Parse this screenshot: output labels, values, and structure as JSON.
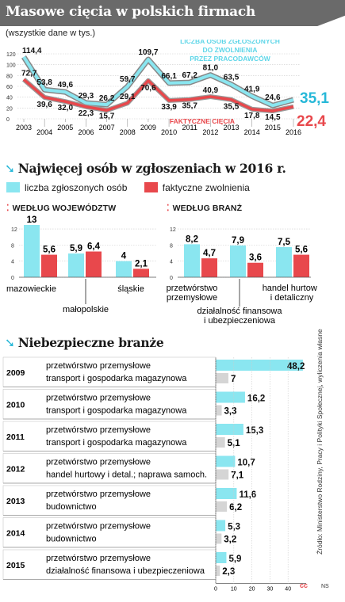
{
  "header": {
    "title": "Masowe cięcia w polskich firmach",
    "subtitle": "(wszystkie dane w tys.)"
  },
  "colors": {
    "cyan": "#8ae6f0",
    "cyan_dark": "#27b8d8",
    "red": "#e8484c",
    "gray": "#8a8a8a"
  },
  "chart_data": [
    {
      "type": "line",
      "x": [
        "2003",
        "2004",
        "2005",
        "2006",
        "2007",
        "2008",
        "2009",
        "2010",
        "2011",
        "2012",
        "2013",
        "2014",
        "2015",
        "2016"
      ],
      "ylim": [
        0,
        120
      ],
      "yticks": [
        0,
        20,
        40,
        60,
        80,
        100,
        120
      ],
      "series": [
        {
          "name": "LICZBA OSÓB ZGŁOSZONYCH DO ZWOLNIENIA PRZEZ PRACODAWCÓW",
          "values": [
            114.4,
            53.8,
            49.6,
            29.3,
            26.2,
            59.7,
            109.7,
            66.1,
            67.2,
            81.0,
            63.5,
            41.9,
            24.6,
            35.1
          ]
        },
        {
          "name": "FAKTYCZNE CIĘCIA",
          "values": [
            72.7,
            39.6,
            32.0,
            22.3,
            15.7,
            29.1,
            70.6,
            33.9,
            35.7,
            40.9,
            35.5,
            17.8,
            14.5,
            22.4
          ]
        }
      ],
      "value_labels_1": [
        "114,4",
        "53,8",
        "49,6",
        "29,3",
        "26,2",
        "59,7",
        "109,7",
        "66,1",
        "67,2",
        "81,0",
        "63,5",
        "41,9",
        "24,6",
        "35,1"
      ],
      "value_labels_2": [
        "72,7",
        "39,6",
        "32,0",
        "22,3",
        "15,7",
        "29,1",
        "70,6",
        "33,9",
        "35,7",
        "40,9",
        "35,5",
        "17,8",
        "14,5",
        "22,4"
      ]
    },
    {
      "type": "bar",
      "title": "WEDŁUG WOJEWÓDZTW",
      "categories": [
        "mazowieckie",
        "małopolskie",
        "śląskie"
      ],
      "ylim": [
        0,
        13
      ],
      "yticks": [
        0,
        4,
        8,
        12
      ],
      "series": [
        {
          "name": "liczba zgłoszonych osób",
          "values": [
            13,
            5.9,
            4
          ],
          "labels": [
            "13",
            "5,9",
            "4"
          ]
        },
        {
          "name": "faktyczne zwolnienia",
          "values": [
            5.6,
            6.4,
            2.1
          ],
          "labels": [
            "5,6",
            "6,4",
            "2,1"
          ]
        }
      ]
    },
    {
      "type": "bar",
      "title": "WEDŁUG BRANŻ",
      "categories": [
        "przetwórstwo przemysłowe",
        "działalność finansowa i ubezpieczeniowa",
        "handel hurtowy i detaliczny"
      ],
      "ylim": [
        0,
        13
      ],
      "yticks": [
        0,
        4,
        8,
        12
      ],
      "series": [
        {
          "name": "liczba zgłoszonych osób",
          "values": [
            8.2,
            7.9,
            7.5
          ],
          "labels": [
            "8,2",
            "7,9",
            "7,5"
          ]
        },
        {
          "name": "faktyczne zwolnienia",
          "values": [
            4.7,
            3.6,
            5.6
          ],
          "labels": [
            "4,7",
            "3,6",
            "5,6"
          ]
        }
      ]
    },
    {
      "type": "bar",
      "orientation": "horizontal",
      "title": "Niebezpieczne branże",
      "xlim": [
        0,
        50
      ],
      "xticks": [
        0,
        10,
        20,
        30,
        40
      ],
      "rows": [
        {
          "year": "2009",
          "sector1": "przetwórstwo przemysłowe",
          "sector2": "transport i gospodarka magazynowa",
          "value1": 48.2,
          "value2": 7,
          "label1": "48,2",
          "label2": "7"
        },
        {
          "year": "2010",
          "sector1": "przetwórstwo przemysłowe",
          "sector2": "transport i gospodarka magazynowa",
          "value1": 16.2,
          "value2": 3.3,
          "label1": "16,2",
          "label2": "3,3"
        },
        {
          "year": "2011",
          "sector1": "przetwórstwo przemysłowe",
          "sector2": "transport i gospodarka magazynowa",
          "value1": 15.3,
          "value2": 5.1,
          "label1": "15,3",
          "label2": "5,1"
        },
        {
          "year": "2012",
          "sector1": "przetwórstwo przemysłowe",
          "sector2": "handel hurtowy i detal.; naprawa samoch.",
          "value1": 10.7,
          "value2": 7.1,
          "label1": "10,7",
          "label2": "7,1"
        },
        {
          "year": "2013",
          "sector1": "przetwórstwo przemysłowe",
          "sector2": "budownictwo",
          "value1": 11.6,
          "value2": 6.2,
          "label1": "11,6",
          "label2": "6,2"
        },
        {
          "year": "2014",
          "sector1": "przetwórstwo przemysłowe",
          "sector2": "budownictwo",
          "value1": 5.3,
          "value2": 3.2,
          "label1": "5,3",
          "label2": "3,2"
        },
        {
          "year": "2015",
          "sector1": "przetwórstwo przemysłowe",
          "sector2": "działalność finansowa i ubezpieczeniowa",
          "value1": 5.9,
          "value2": 2.3,
          "label1": "5,9",
          "label2": "2,3"
        }
      ]
    }
  ],
  "section2": {
    "title": "Najwięcej osób w zgłoszeniach w 2016 r.",
    "legend_reported": "liczba zgłoszonych osób",
    "legend_actual": "faktyczne zwolnienia"
  },
  "section3": {
    "title": "Niebezpieczne branże"
  },
  "footer": {
    "source": "Źródło: Ministerstwo Rodziny, Pracy i Polityki Społecznej, wyliczenia własne",
    "credit": "NS",
    "cc": "cc"
  }
}
